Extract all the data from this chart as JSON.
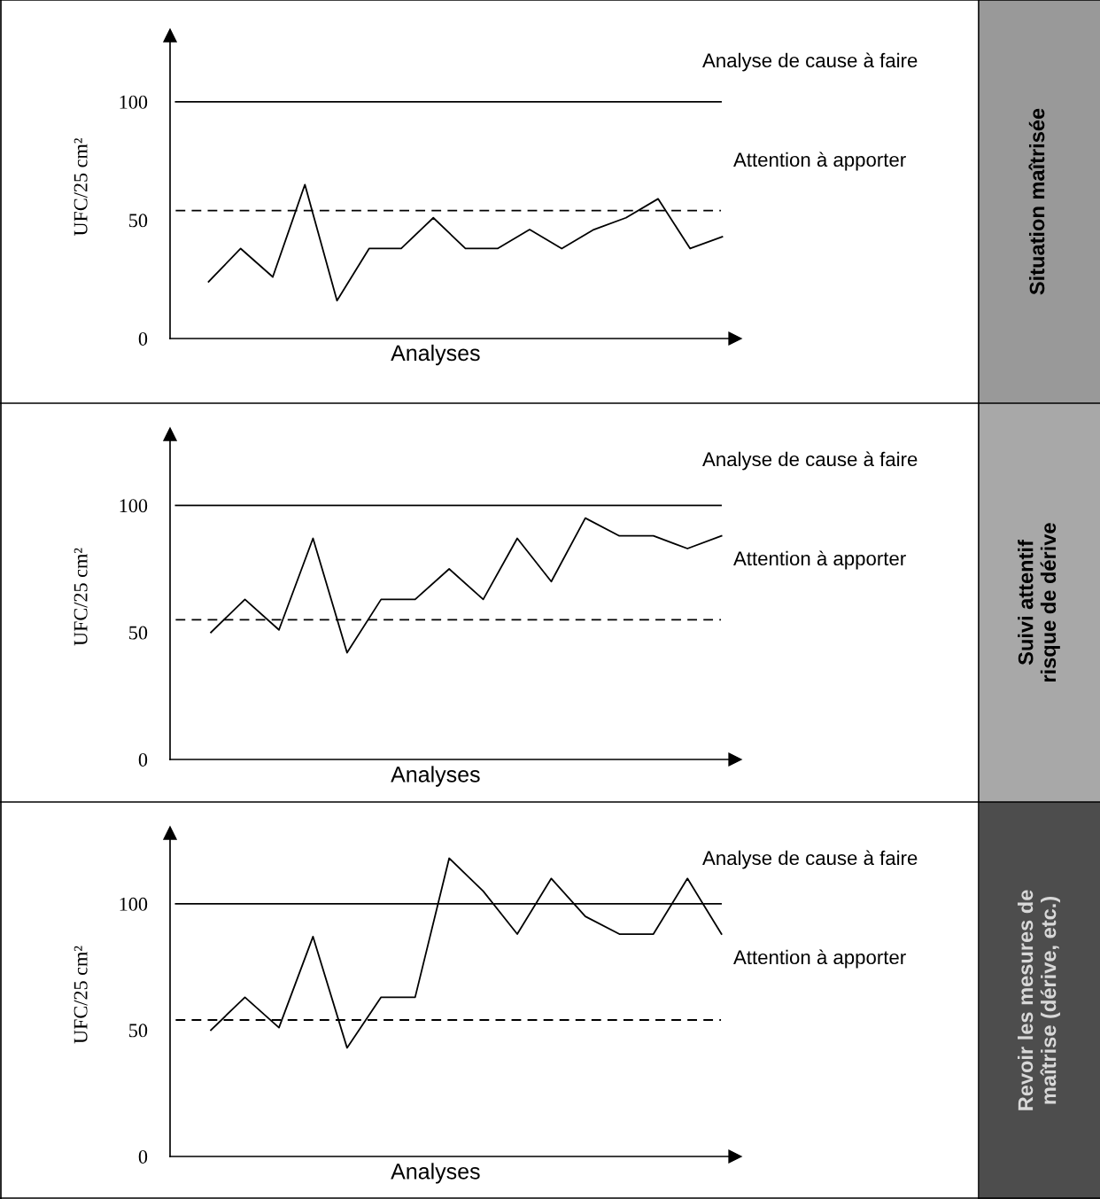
{
  "chart_data": [
    {
      "type": "line",
      "ylabel": "UFC/25 cm²",
      "xlabel": "Analyses",
      "categories": [
        null,
        null,
        null,
        null,
        null,
        null,
        null,
        null,
        null,
        null,
        null,
        null,
        null,
        null,
        null,
        null,
        null
      ],
      "series": [
        {
          "color": "#000000",
          "values": [
            24,
            38,
            26,
            65,
            16,
            38,
            38,
            51,
            38,
            38,
            46,
            38,
            46,
            51,
            59,
            38,
            43
          ]
        }
      ],
      "ylim": [
        0,
        128
      ],
      "yticks": [
        0,
        50,
        100
      ],
      "grid": false,
      "legend": false,
      "marker": "none",
      "ref_lines": [
        {
          "axis": "y",
          "value": 100,
          "color": "#000000",
          "line_style": "solid"
        },
        {
          "axis": "y",
          "value": 54,
          "color": "#000000",
          "line_style": "dashed"
        }
      ],
      "annotations": [
        "Analyse de cause à faire",
        "Attention à apporter",
        "Situation maîtrisée"
      ]
    },
    {
      "type": "line",
      "ylabel": "UFC/25 cm²",
      "xlabel": "Analyses",
      "categories": [
        null,
        null,
        null,
        null,
        null,
        null,
        null,
        null,
        null,
        null,
        null,
        null,
        null,
        null,
        null,
        null
      ],
      "series": [
        {
          "color": "#000000",
          "values": [
            50,
            63,
            51,
            87,
            42,
            63,
            63,
            75,
            63,
            87,
            70,
            95,
            88,
            88,
            83,
            88
          ]
        }
      ],
      "ylim": [
        0,
        128
      ],
      "yticks": [
        0,
        50,
        100
      ],
      "grid": false,
      "legend": false,
      "marker": "none",
      "ref_lines": [
        {
          "axis": "y",
          "value": 100,
          "color": "#000000",
          "line_style": "solid"
        },
        {
          "axis": "y",
          "value": 55,
          "color": "#000000",
          "line_style": "dashed"
        }
      ],
      "annotations": [
        "Analyse de cause à faire",
        "Attention à apporter",
        "Suivi attentif\nrisque de dérive"
      ]
    },
    {
      "type": "line",
      "ylabel": "UFC/25 cm²",
      "xlabel": "Analyses",
      "categories": [
        null,
        null,
        null,
        null,
        null,
        null,
        null,
        null,
        null,
        null,
        null,
        null,
        null,
        null,
        null,
        null
      ],
      "series": [
        {
          "color": "#000000",
          "values": [
            50,
            63,
            51,
            87,
            43,
            63,
            63,
            118,
            105,
            88,
            110,
            95,
            88,
            88,
            110,
            88
          ]
        }
      ],
      "ylim": [
        0,
        128
      ],
      "yticks": [
        0,
        50,
        100
      ],
      "grid": false,
      "legend": false,
      "marker": "none",
      "ref_lines": [
        {
          "axis": "y",
          "value": 100,
          "color": "#000000",
          "line_style": "solid"
        },
        {
          "axis": "y",
          "value": 54,
          "color": "#000000",
          "line_style": "dashed"
        }
      ],
      "annotations": [
        "Analyse de cause à faire",
        "Attention à apporter",
        "Revoir les mesures de\nmaîtrise (dérive, etc.)"
      ]
    }
  ]
}
